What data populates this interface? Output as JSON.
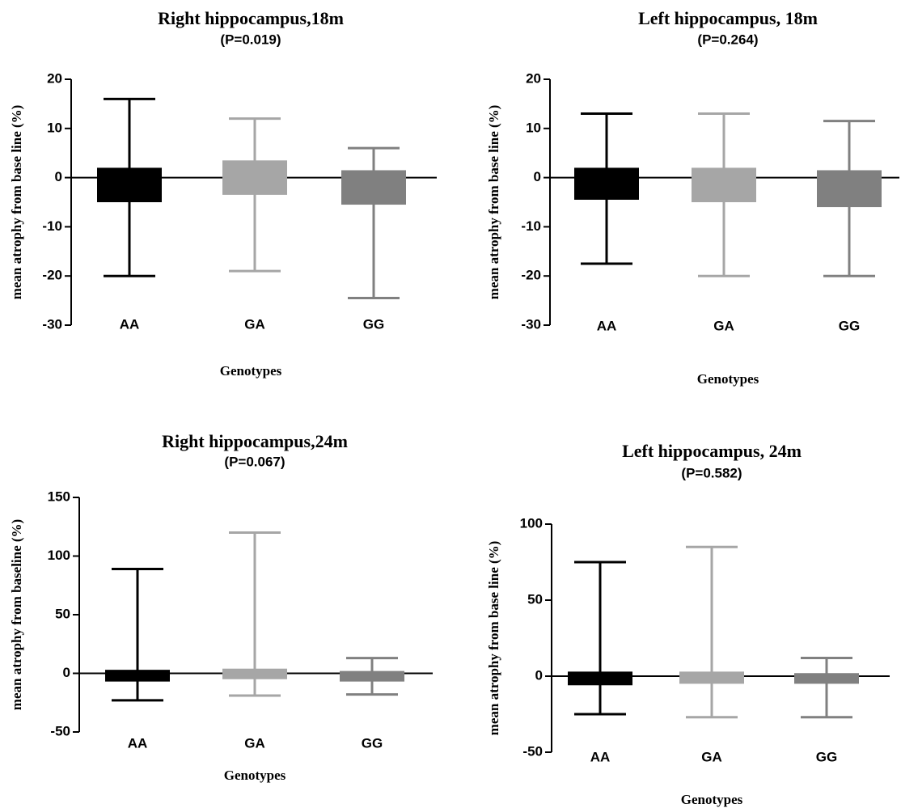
{
  "chart_data": [
    {
      "type": "box",
      "title": "Right hippocampus,18m",
      "subtitle": "(P=0.019)",
      "xlabel": "Genotypes",
      "ylabel": "mean atrophy from base line (%)",
      "categories": [
        "AA",
        "GA",
        "GG"
      ],
      "colors": [
        "#000000",
        "#a6a6a6",
        "#808080"
      ],
      "whisker_high": [
        16,
        12,
        6
      ],
      "q3": [
        2,
        3.5,
        1.5
      ],
      "q1": [
        -5,
        -3.5,
        -5.5
      ],
      "whisker_low": [
        -20,
        -19,
        -24.5
      ],
      "ylim": [
        -30,
        20
      ],
      "yticks": [
        -30,
        -20,
        -10,
        0,
        10,
        20
      ]
    },
    {
      "type": "box",
      "title": "Left hippocampus, 18m",
      "subtitle": "(P=0.264)",
      "xlabel": "Genotypes",
      "ylabel": "mean atrophy from base line (%)",
      "categories": [
        "AA",
        "GA",
        "GG"
      ],
      "colors": [
        "#000000",
        "#a6a6a6",
        "#808080"
      ],
      "whisker_high": [
        13,
        13,
        11.5
      ],
      "q3": [
        2,
        2,
        1.5
      ],
      "q1": [
        -4.5,
        -5,
        -6
      ],
      "whisker_low": [
        -17.5,
        -20,
        -20
      ],
      "ylim": [
        -30,
        20
      ],
      "yticks": [
        -30,
        -20,
        -10,
        0,
        10,
        20
      ]
    },
    {
      "type": "box",
      "title": "Right hippocampus,24m",
      "subtitle": "(P=0.067)",
      "xlabel": "Genotypes",
      "ylabel": "mean atrophy from baseline (%)",
      "categories": [
        "AA",
        "GA",
        "GG"
      ],
      "colors": [
        "#000000",
        "#a6a6a6",
        "#808080"
      ],
      "whisker_high": [
        89,
        120,
        13
      ],
      "q3": [
        3,
        4,
        2
      ],
      "q1": [
        -7,
        -5,
        -7
      ],
      "whisker_low": [
        -23,
        -19,
        -18
      ],
      "ylim": [
        -50,
        150
      ],
      "yticks": [
        -50,
        0,
        50,
        100,
        150
      ]
    },
    {
      "type": "box",
      "title": "Left hippocampus, 24m",
      "subtitle": "(P=0.582)",
      "xlabel": "Genotypes",
      "ylabel": "mean atrophy from base line (%)",
      "categories": [
        "AA",
        "GA",
        "GG"
      ],
      "colors": [
        "#000000",
        "#a6a6a6",
        "#808080"
      ],
      "whisker_high": [
        75,
        85,
        12
      ],
      "q3": [
        3,
        3,
        2
      ],
      "q1": [
        -6,
        -5,
        -5
      ],
      "whisker_low": [
        -25,
        -27,
        -27
      ],
      "ylim": [
        -50,
        100
      ],
      "yticks": [
        -50,
        0,
        50,
        100
      ]
    }
  ]
}
